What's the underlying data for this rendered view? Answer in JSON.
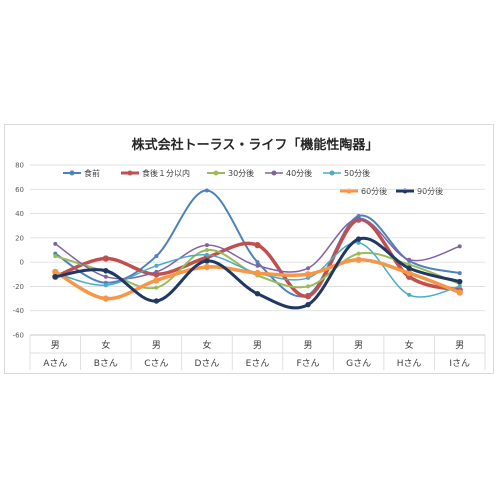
{
  "chart_data": {
    "type": "line",
    "smooth": true,
    "title": "株式会社トーラス・ライフ「機能性陶器」",
    "xlabel": "",
    "ylabel": "",
    "ylim": [
      -60,
      80
    ],
    "y_ticks": [
      -60,
      -40,
      -20,
      0,
      20,
      40,
      60,
      80
    ],
    "grid": "horizontal",
    "legend_position": "top",
    "categories": [
      {
        "gender": "男",
        "name": "Aさん"
      },
      {
        "gender": "女",
        "name": "Bさん"
      },
      {
        "gender": "男",
        "name": "Cさん"
      },
      {
        "gender": "女",
        "name": "Dさん"
      },
      {
        "gender": "男",
        "name": "Eさん"
      },
      {
        "gender": "男",
        "name": "Fさん"
      },
      {
        "gender": "男",
        "name": "Gさん"
      },
      {
        "gender": "女",
        "name": "Hさん"
      },
      {
        "gender": "男",
        "name": "Iさん"
      }
    ],
    "series": [
      {
        "name": "食前",
        "color": "#4f81bd",
        "width": 2,
        "values": [
          7,
          -17,
          5,
          59,
          0,
          -27,
          38,
          1,
          -9
        ]
      },
      {
        "name": "食後１分以内",
        "color": "#c0504d",
        "width": 3.5,
        "values": [
          -12,
          3,
          -10,
          4,
          14,
          -28,
          35,
          -12,
          -23
        ]
      },
      {
        "name": "30分後",
        "color": "#9bbb59",
        "width": 2,
        "values": [
          5,
          -8,
          -21,
          10,
          -11,
          -20,
          7,
          -2,
          -18
        ]
      },
      {
        "name": "40分後",
        "color": "#8064a2",
        "width": 1.5,
        "values": [
          15,
          -12,
          -8,
          14,
          -3,
          -5,
          36,
          2,
          13
        ]
      },
      {
        "name": "50分後",
        "color": "#4bacc6",
        "width": 1.5,
        "values": [
          -9,
          -19,
          -3,
          6,
          -9,
          -13,
          16,
          -27,
          -20
        ]
      },
      {
        "name": "60分後",
        "color": "#f79646",
        "width": 3.5,
        "values": [
          -8,
          -30,
          -15,
          -4,
          -9,
          -10,
          2,
          -9,
          -25
        ]
      },
      {
        "name": "90分後",
        "color": "#1f3864",
        "width": 3,
        "values": [
          -12,
          -7,
          -32,
          1,
          -26,
          -35,
          19,
          -5,
          -16
        ]
      }
    ]
  }
}
